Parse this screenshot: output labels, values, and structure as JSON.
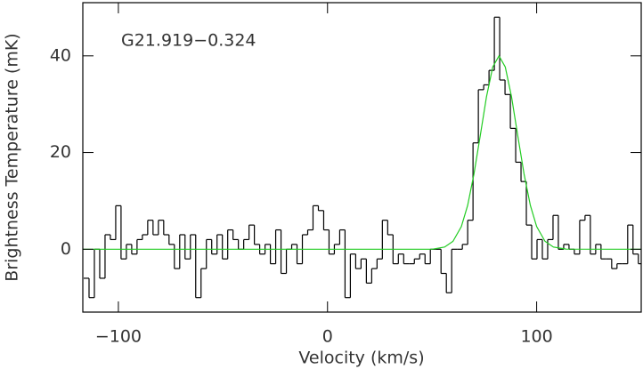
{
  "chart_data": {
    "type": "line",
    "annotation": "G21.919−0.324",
    "xlabel": "Velocity (km/s)",
    "ylabel": "Brightness Temperature (mK)",
    "xlim": [
      -117,
      150
    ],
    "ylim": [
      -13,
      51
    ],
    "xticks": [
      {
        "value": -100,
        "label": "−100"
      },
      0,
      100
    ],
    "yticks": [
      0,
      20,
      40
    ],
    "series": [
      {
        "color": "#000000",
        "step": true,
        "x": [
          -115.3,
          -112.75,
          -110.2,
          -107.65,
          -105.1,
          -102.55,
          -100.0,
          -97.45,
          -94.9,
          -92.35,
          -89.8,
          -87.25,
          -84.7,
          -82.15,
          -79.6,
          -77.05,
          -74.5,
          -71.95,
          -69.4,
          -66.85,
          -64.3,
          -61.75,
          -59.2,
          -56.65,
          -54.1,
          -51.55,
          -49.0,
          -46.45,
          -43.9,
          -41.35,
          -38.8,
          -36.25,
          -33.7,
          -31.15,
          -28.6,
          -26.05,
          -23.5,
          -20.95,
          -18.4,
          -15.85,
          -13.3,
          -10.75,
          -8.2,
          -5.65,
          -3.1,
          -0.55,
          2.0,
          4.55,
          7.1,
          9.65,
          12.2,
          14.75,
          17.3,
          19.85,
          22.4,
          24.95,
          27.5,
          30.05,
          32.6,
          35.15,
          37.7,
          40.25,
          42.8,
          45.35,
          47.9,
          50.45,
          53.0,
          55.55,
          58.1,
          60.65,
          63.2,
          65.75,
          68.3,
          70.85,
          73.4,
          75.95,
          78.5,
          81.05,
          83.6,
          86.15,
          88.7,
          91.25,
          93.8,
          96.35,
          98.9,
          101.45,
          104.0,
          106.55,
          109.1,
          111.65,
          114.2,
          116.75,
          119.3,
          121.85,
          124.4,
          126.95,
          129.5,
          132.05,
          134.6,
          137.15,
          139.7,
          142.25,
          144.8,
          147.35,
          149.9
        ],
        "values": [
          -6,
          -10,
          0,
          -6,
          3,
          2,
          9,
          -2,
          1,
          -1,
          2,
          3,
          6,
          3,
          6,
          3,
          1,
          -4,
          3,
          -2,
          3,
          -10,
          -4,
          2,
          -1,
          3,
          -2,
          4,
          2,
          0,
          2,
          5,
          1,
          -1,
          1,
          -3,
          4,
          -5,
          0,
          1,
          -3,
          3,
          4,
          9,
          8,
          4,
          -1,
          1,
          4,
          -10,
          -1,
          -4,
          -2,
          -7,
          -4,
          -2,
          6,
          3,
          -3,
          -1,
          -3,
          -3,
          -2,
          -1,
          -3,
          0,
          0,
          -5,
          -9,
          0,
          0,
          1,
          6,
          22,
          33,
          34,
          37,
          48,
          35,
          32,
          25,
          18,
          14,
          5,
          -2,
          2,
          -2,
          2,
          7,
          0,
          1,
          0,
          -1,
          6,
          7,
          -1,
          1,
          -2,
          -2,
          -4,
          -3,
          -3,
          5,
          -1,
          -3
        ]
      },
      {
        "color": "#22cc22",
        "x": [
          -117,
          50,
          56,
          60,
          64,
          67,
          70,
          73,
          76,
          79,
          82,
          85,
          88,
          91,
          94,
          97,
          100,
          104,
          108,
          114,
          150
        ],
        "values": [
          0,
          0,
          0.46,
          1.64,
          4.7,
          9.05,
          15.5,
          23.4,
          31.5,
          37.7,
          40,
          37.7,
          31.5,
          23.4,
          15.5,
          9.05,
          4.7,
          1.64,
          0.46,
          0.03,
          0
        ]
      }
    ]
  }
}
